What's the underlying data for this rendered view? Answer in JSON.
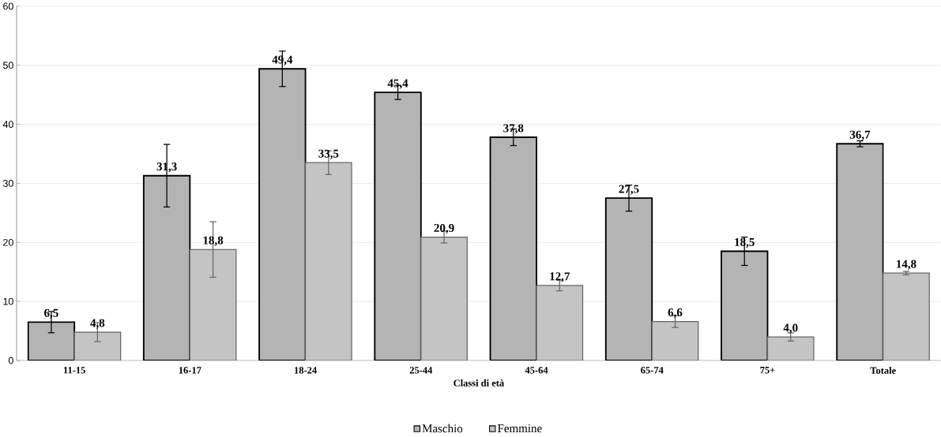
{
  "chart_data": {
    "type": "bar",
    "xlabel": "Classi di età",
    "categories": [
      "11-15",
      "16-17",
      "18-24",
      "25-44",
      "45-64",
      "65-74",
      "75+",
      "Totale"
    ],
    "series": [
      {
        "name": "Maschio",
        "color": "#b4b4b4",
        "values": [
          6.5,
          31.3,
          49.4,
          45.4,
          37.8,
          27.5,
          18.5,
          36.7
        ],
        "errors": [
          1.8,
          5.3,
          3.0,
          1.2,
          1.4,
          2.2,
          2.4,
          0.5
        ],
        "value_labels": [
          "6,5",
          "31,3",
          "49,4",
          "45,4",
          "37,8",
          "27,5",
          "18,5",
          "36,7"
        ]
      },
      {
        "name": "Femmine",
        "color": "#c4c4c4",
        "values": [
          4.8,
          18.8,
          33.5,
          20.9,
          12.7,
          6.6,
          4.0,
          14.8
        ],
        "errors": [
          1.6,
          4.7,
          2.0,
          1.0,
          0.9,
          1.0,
          0.7,
          0.3
        ],
        "value_labels": [
          "4,8",
          "18,8",
          "33,5",
          "20,9",
          "12,7",
          "6,6",
          "4,0",
          "14,8"
        ]
      }
    ],
    "ylim": [
      0,
      60
    ],
    "yticks": [
      0,
      10,
      20,
      30,
      40,
      50,
      60
    ],
    "grid": "y",
    "legend": "bottom"
  }
}
